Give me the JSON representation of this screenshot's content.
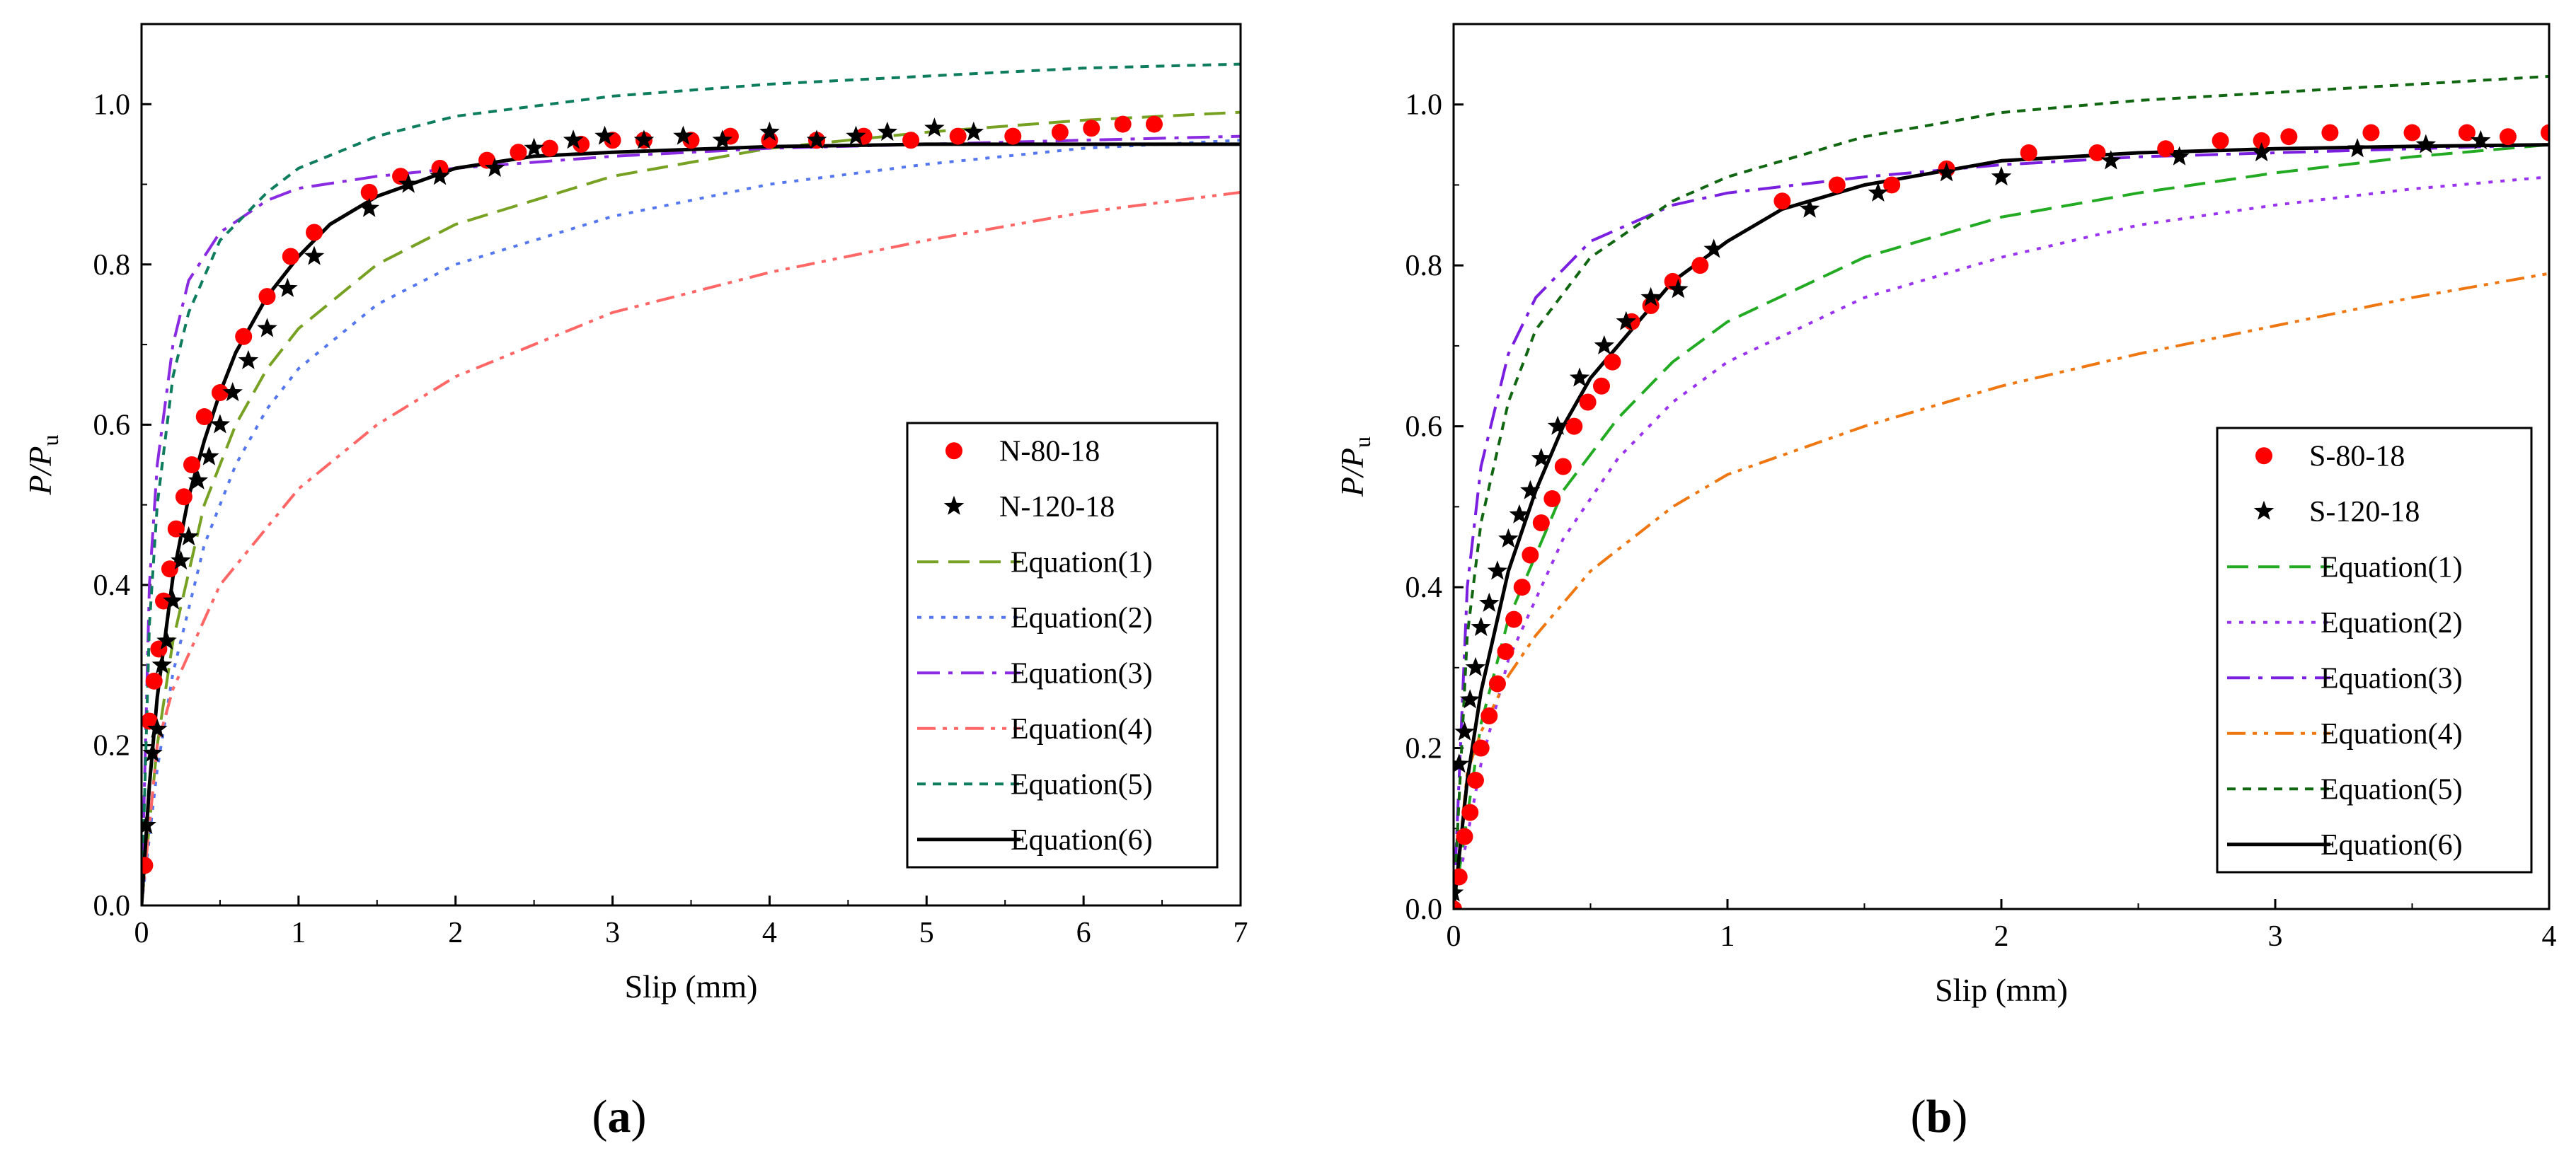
{
  "chart_data": [
    {
      "type": "scatter+line",
      "panel": "a",
      "caption": {
        "open": "(",
        "letter": "a",
        "close": ")"
      },
      "xlabel": "Slip (mm)",
      "ylabel": {
        "main": "P/P",
        "sub": "u"
      },
      "xlim": [
        0,
        7
      ],
      "ylim": [
        0,
        1.1
      ],
      "xticks": [
        "0",
        "1",
        "2",
        "3",
        "4",
        "5",
        "6",
        "7"
      ],
      "yticks": [
        "0.0",
        "0.2",
        "0.4",
        "0.6",
        "0.8",
        "1.0"
      ],
      "legend_position": "lower-right",
      "series": [
        {
          "name": "N-80-18",
          "kind": "points",
          "marker": "circle",
          "color": "#ff0000",
          "x": [
            0.02,
            0.05,
            0.08,
            0.11,
            0.14,
            0.18,
            0.22,
            0.27,
            0.32,
            0.4,
            0.5,
            0.65,
            0.8,
            0.95,
            1.1,
            1.45,
            1.65,
            1.9,
            2.2,
            2.4,
            2.6,
            2.8,
            3.0,
            3.2,
            3.5,
            3.75,
            4.0,
            4.3,
            4.6,
            4.9,
            5.2,
            5.55,
            5.85,
            6.05,
            6.25,
            6.45
          ],
          "y": [
            0.05,
            0.23,
            0.28,
            0.32,
            0.38,
            0.42,
            0.47,
            0.51,
            0.55,
            0.61,
            0.64,
            0.71,
            0.76,
            0.81,
            0.84,
            0.89,
            0.91,
            0.92,
            0.93,
            0.94,
            0.945,
            0.95,
            0.955,
            0.955,
            0.955,
            0.96,
            0.955,
            0.955,
            0.96,
            0.955,
            0.96,
            0.96,
            0.965,
            0.97,
            0.975,
            0.975
          ]
        },
        {
          "name": "N-120-18",
          "kind": "points",
          "marker": "star",
          "color": "#000000",
          "x": [
            0.03,
            0.07,
            0.1,
            0.13,
            0.16,
            0.2,
            0.25,
            0.3,
            0.36,
            0.43,
            0.5,
            0.58,
            0.68,
            0.8,
            0.93,
            1.1,
            1.45,
            1.7,
            1.9,
            2.25,
            2.5,
            2.75,
            2.95,
            3.2,
            3.45,
            3.7,
            4.0,
            4.3,
            4.55,
            4.75,
            5.05,
            5.3
          ],
          "y": [
            0.1,
            0.19,
            0.22,
            0.3,
            0.33,
            0.38,
            0.43,
            0.46,
            0.53,
            0.56,
            0.6,
            0.64,
            0.68,
            0.72,
            0.77,
            0.81,
            0.87,
            0.9,
            0.91,
            0.92,
            0.945,
            0.955,
            0.96,
            0.955,
            0.96,
            0.955,
            0.965,
            0.955,
            0.96,
            0.965,
            0.97,
            0.965
          ]
        },
        {
          "name": "Equation(1)",
          "kind": "line",
          "dash": "dash",
          "color": "#77a122",
          "x": [
            0,
            0.1,
            0.2,
            0.4,
            0.6,
            0.8,
            1,
            1.5,
            2,
            3,
            4,
            5,
            6,
            7
          ],
          "y": [
            0,
            0.2,
            0.33,
            0.5,
            0.6,
            0.67,
            0.72,
            0.8,
            0.85,
            0.91,
            0.945,
            0.965,
            0.98,
            0.99
          ]
        },
        {
          "name": "Equation(2)",
          "kind": "line",
          "dash": "dot",
          "color": "#5577ee",
          "x": [
            0,
            0.1,
            0.2,
            0.4,
            0.6,
            0.8,
            1,
            1.5,
            2,
            3,
            4,
            5,
            6,
            7
          ],
          "y": [
            0,
            0.17,
            0.29,
            0.45,
            0.55,
            0.62,
            0.67,
            0.75,
            0.8,
            0.86,
            0.9,
            0.925,
            0.945,
            0.955
          ]
        },
        {
          "name": "Equation(3)",
          "kind": "line",
          "dash": "dashdot",
          "color": "#8a2be2",
          "x": [
            0,
            0.05,
            0.1,
            0.2,
            0.3,
            0.5,
            0.8,
            1,
            1.5,
            2,
            3,
            4,
            5,
            6,
            7
          ],
          "y": [
            0,
            0.4,
            0.55,
            0.7,
            0.78,
            0.84,
            0.88,
            0.895,
            0.91,
            0.92,
            0.935,
            0.945,
            0.95,
            0.955,
            0.96
          ]
        },
        {
          "name": "Equation(4)",
          "kind": "line",
          "dash": "dashdotdot",
          "color": "#ff6666",
          "x": [
            0,
            0.1,
            0.2,
            0.5,
            1,
            1.5,
            2,
            3,
            4,
            5,
            6,
            7
          ],
          "y": [
            0,
            0.2,
            0.27,
            0.4,
            0.52,
            0.6,
            0.66,
            0.74,
            0.79,
            0.83,
            0.865,
            0.89
          ]
        },
        {
          "name": "Equation(5)",
          "kind": "line",
          "dash": "shortdash",
          "color": "#0e7d5e",
          "x": [
            0,
            0.05,
            0.1,
            0.2,
            0.3,
            0.5,
            0.8,
            1,
            1.5,
            2,
            3,
            4,
            5,
            6,
            7
          ],
          "y": [
            0,
            0.35,
            0.5,
            0.66,
            0.74,
            0.83,
            0.89,
            0.92,
            0.96,
            0.985,
            1.01,
            1.025,
            1.035,
            1.045,
            1.05
          ]
        },
        {
          "name": "Equation(6)",
          "kind": "line",
          "dash": "solid",
          "color": "#000000",
          "x": [
            0,
            0.05,
            0.1,
            0.2,
            0.3,
            0.4,
            0.5,
            0.6,
            0.8,
            1,
            1.2,
            1.5,
            2,
            2.5,
            3,
            4,
            5,
            6,
            7
          ],
          "y": [
            0,
            0.15,
            0.26,
            0.41,
            0.51,
            0.58,
            0.64,
            0.69,
            0.76,
            0.81,
            0.85,
            0.885,
            0.92,
            0.935,
            0.94,
            0.947,
            0.95,
            0.95,
            0.95
          ]
        }
      ]
    },
    {
      "type": "scatter+line",
      "panel": "b",
      "caption": {
        "open": "(",
        "letter": "b",
        "close": ")"
      },
      "xlabel": "Slip (mm)",
      "ylabel": {
        "main": "P/P",
        "sub": "u"
      },
      "xlim": [
        0,
        4
      ],
      "ylim": [
        0,
        1.1
      ],
      "xticks": [
        "0",
        "1",
        "2",
        "3",
        "4"
      ],
      "yticks": [
        "0.0",
        "0.2",
        "0.4",
        "0.6",
        "0.8",
        "1.0"
      ],
      "legend_position": "lower-right",
      "series": [
        {
          "name": "S-80-18",
          "kind": "points",
          "marker": "circle",
          "color": "#ff0000",
          "x": [
            0.0,
            0.02,
            0.04,
            0.06,
            0.08,
            0.1,
            0.13,
            0.16,
            0.19,
            0.22,
            0.25,
            0.28,
            0.32,
            0.36,
            0.4,
            0.44,
            0.49,
            0.54,
            0.58,
            0.65,
            0.72,
            0.8,
            0.9,
            1.2,
            1.4,
            1.6,
            1.8,
            2.1,
            2.35,
            2.6,
            2.8,
            2.95,
            3.05,
            3.2,
            3.35,
            3.5,
            3.7,
            3.85,
            4.0
          ],
          "y": [
            0.0,
            0.04,
            0.09,
            0.12,
            0.16,
            0.2,
            0.24,
            0.28,
            0.32,
            0.36,
            0.4,
            0.44,
            0.48,
            0.51,
            0.55,
            0.6,
            0.63,
            0.65,
            0.68,
            0.73,
            0.75,
            0.78,
            0.8,
            0.88,
            0.9,
            0.9,
            0.92,
            0.94,
            0.94,
            0.945,
            0.955,
            0.955,
            0.96,
            0.965,
            0.965,
            0.965,
            0.965,
            0.96,
            0.965
          ]
        },
        {
          "name": "S-120-18",
          "kind": "points",
          "marker": "star",
          "color": "#000000",
          "x": [
            0.0,
            0.02,
            0.04,
            0.06,
            0.08,
            0.1,
            0.13,
            0.16,
            0.2,
            0.24,
            0.28,
            0.32,
            0.38,
            0.46,
            0.55,
            0.63,
            0.72,
            0.82,
            0.95,
            1.3,
            1.55,
            1.8,
            2.0,
            2.4,
            2.65,
            2.95,
            3.3,
            3.55,
            3.75
          ],
          "y": [
            0.02,
            0.18,
            0.22,
            0.26,
            0.3,
            0.35,
            0.38,
            0.42,
            0.46,
            0.49,
            0.52,
            0.56,
            0.6,
            0.66,
            0.7,
            0.73,
            0.76,
            0.77,
            0.82,
            0.87,
            0.89,
            0.915,
            0.91,
            0.93,
            0.935,
            0.94,
            0.945,
            0.95,
            0.955
          ]
        },
        {
          "name": "Equation(1)",
          "kind": "line",
          "dash": "dash",
          "color": "#22aa22",
          "x": [
            0,
            0.1,
            0.2,
            0.4,
            0.6,
            0.8,
            1,
            1.5,
            2,
            2.5,
            3,
            3.5,
            4
          ],
          "y": [
            0,
            0.23,
            0.36,
            0.52,
            0.61,
            0.68,
            0.73,
            0.81,
            0.86,
            0.89,
            0.915,
            0.935,
            0.95
          ]
        },
        {
          "name": "Equation(2)",
          "kind": "line",
          "dash": "dot",
          "color": "#9933ee",
          "x": [
            0,
            0.1,
            0.2,
            0.4,
            0.6,
            0.8,
            1,
            1.5,
            2,
            2.5,
            3,
            3.5,
            4
          ],
          "y": [
            0,
            0.18,
            0.31,
            0.46,
            0.56,
            0.63,
            0.68,
            0.76,
            0.81,
            0.85,
            0.875,
            0.895,
            0.91
          ]
        },
        {
          "name": "Equation(3)",
          "kind": "line",
          "dash": "dashdot",
          "color": "#7a1fe0",
          "x": [
            0,
            0.05,
            0.1,
            0.2,
            0.3,
            0.5,
            0.8,
            1,
            1.5,
            2,
            2.5,
            3,
            3.5,
            4
          ],
          "y": [
            0,
            0.4,
            0.55,
            0.69,
            0.76,
            0.83,
            0.875,
            0.89,
            0.91,
            0.925,
            0.935,
            0.94,
            0.945,
            0.95
          ]
        },
        {
          "name": "Equation(4)",
          "kind": "line",
          "dash": "dashdotdot",
          "color": "#ee7711",
          "x": [
            0,
            0.05,
            0.1,
            0.2,
            0.3,
            0.5,
            0.8,
            1,
            1.5,
            2,
            2.5,
            3,
            3.5,
            4
          ],
          "y": [
            0,
            0.17,
            0.22,
            0.29,
            0.34,
            0.42,
            0.5,
            0.54,
            0.6,
            0.65,
            0.69,
            0.725,
            0.76,
            0.79
          ]
        },
        {
          "name": "Equation(5)",
          "kind": "line",
          "dash": "shortdash",
          "color": "#116611",
          "x": [
            0,
            0.05,
            0.1,
            0.2,
            0.3,
            0.5,
            0.8,
            1,
            1.5,
            2,
            2.5,
            3,
            3.5,
            4
          ],
          "y": [
            0,
            0.34,
            0.48,
            0.63,
            0.72,
            0.81,
            0.88,
            0.91,
            0.96,
            0.99,
            1.005,
            1.015,
            1.025,
            1.035
          ]
        },
        {
          "name": "Equation(6)",
          "kind": "line",
          "dash": "solid",
          "color": "#000000",
          "x": [
            0,
            0.05,
            0.1,
            0.2,
            0.3,
            0.4,
            0.5,
            0.6,
            0.8,
            1,
            1.2,
            1.5,
            2,
            2.5,
            3,
            3.5,
            4
          ],
          "y": [
            0,
            0.16,
            0.27,
            0.42,
            0.52,
            0.6,
            0.66,
            0.7,
            0.78,
            0.83,
            0.87,
            0.9,
            0.93,
            0.94,
            0.945,
            0.948,
            0.95
          ]
        }
      ]
    }
  ]
}
